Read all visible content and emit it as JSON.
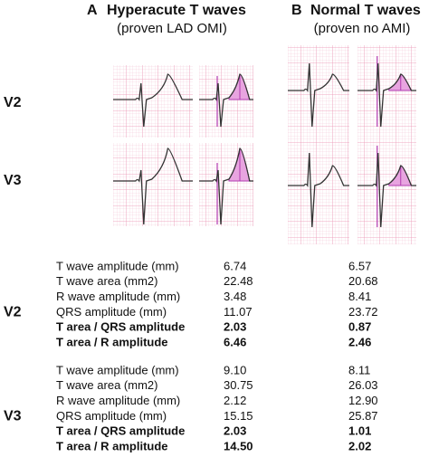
{
  "panel_a": {
    "letter": "A",
    "title": "Hyperacute T waves",
    "subtitle": "(proven LAD OMI)"
  },
  "panel_b": {
    "letter": "B",
    "title": "Normal T waves",
    "subtitle": "(proven no AMI)"
  },
  "ecg_leads": [
    "V2",
    "V3"
  ],
  "table": {
    "groups": [
      {
        "lead": "V2",
        "rows": [
          [
            "T wave amplitude (mm)",
            "6.74",
            "6.57"
          ],
          [
            "T wave area (mm2)",
            "22.48",
            "20.68"
          ],
          [
            "R wave amplitude (mm)",
            "3.48",
            "8.41"
          ],
          [
            "QRS amplitude (mm)",
            "11.07",
            "23.72"
          ],
          [
            "T area / QRS amplitude",
            "2.03",
            "0.87"
          ],
          [
            "T area / R amplitude",
            "6.46",
            "2.46"
          ]
        ]
      },
      {
        "lead": "V3",
        "rows": [
          [
            "T wave amplitude (mm)",
            "9.10",
            "8.11"
          ],
          [
            "T wave area (mm2)",
            "30.75",
            "26.03"
          ],
          [
            "R wave amplitude (mm)",
            "2.12",
            "12.90"
          ],
          [
            "QRS amplitude (mm)",
            "15.15",
            "25.87"
          ],
          [
            "T area / QRS amplitude",
            "2.03",
            "1.01"
          ],
          [
            "T area / R amplitude",
            "14.50",
            "2.02"
          ]
        ]
      }
    ]
  }
}
